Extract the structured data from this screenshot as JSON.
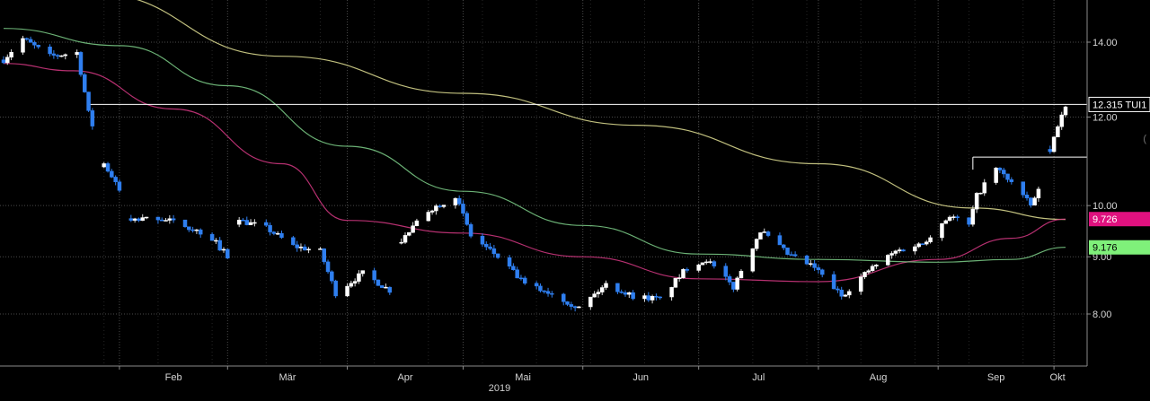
{
  "chart_data": {
    "type": "candlestick",
    "year_label": "2019",
    "x_ticks": [
      "Feb",
      "Mär",
      "Apr",
      "Mai",
      "Jun",
      "Jul",
      "Aug",
      "Sep",
      "Okt"
    ],
    "y_ticks": [
      "14.00",
      "12.00",
      "10.00",
      "9.00",
      "8.00"
    ],
    "y_axis": {
      "scale": "log",
      "range": [
        7.5,
        15.5
      ]
    },
    "grid": true,
    "colors": {
      "background": "#000000",
      "up_candle": "#ffffff",
      "down_candle": "#2f7ff0",
      "ma_long": "#e2e094",
      "ma_mid": "#7ed08a",
      "ma_short": "#d63884",
      "price_line": "#ffffff",
      "grid": "#4a4a4a"
    },
    "badges": [
      {
        "text": "12.315 TUI1",
        "value": 12.315,
        "color": "#000000",
        "text_color": "#ffffff",
        "border": "#ffffff"
      },
      {
        "text": "9.726",
        "value": 9.726,
        "color": "#e0117f",
        "text_color": "#ffffff"
      },
      {
        "text": "9.176",
        "value": 9.176,
        "color": "#7ff07a",
        "text_color": "#000000"
      }
    ],
    "horizontal_lines": [
      {
        "name": "last-price-line",
        "value": 12.315,
        "from": "2019-01-24",
        "to": "2019-10-04"
      },
      {
        "name": "resistance-line",
        "value": 11.05,
        "from": "2019-09-10",
        "to": "2019-10-04"
      }
    ],
    "series": [
      {
        "name": "candles",
        "anchors": [
          [
            "2019-01-02",
            13.5
          ],
          [
            "2019-01-07",
            14.1
          ],
          [
            "2019-01-14",
            13.6
          ],
          [
            "2019-01-21",
            13.7
          ],
          [
            "2019-01-24",
            12.1
          ],
          [
            "2019-01-28",
            10.9
          ],
          [
            "2019-02-01",
            10.3
          ],
          [
            "2019-02-04",
            9.7
          ],
          [
            "2019-02-11",
            9.75
          ],
          [
            "2019-02-18",
            9.6
          ],
          [
            "2019-02-25",
            9.35
          ],
          [
            "2019-03-01",
            9.0
          ],
          [
            "2019-03-04",
            9.7
          ],
          [
            "2019-03-11",
            9.55
          ],
          [
            "2019-03-18",
            9.2
          ],
          [
            "2019-03-25",
            9.1
          ],
          [
            "2019-03-29",
            8.35
          ],
          [
            "2019-04-05",
            8.7
          ],
          [
            "2019-04-12",
            8.4
          ],
          [
            "2019-04-15",
            9.3
          ],
          [
            "2019-04-22",
            9.9
          ],
          [
            "2019-04-29",
            10.2
          ],
          [
            "2019-05-03",
            9.4
          ],
          [
            "2019-05-10",
            9.0
          ],
          [
            "2019-05-17",
            8.5
          ],
          [
            "2019-05-24",
            8.35
          ],
          [
            "2019-05-31",
            8.1
          ],
          [
            "2019-06-07",
            8.5
          ],
          [
            "2019-06-14",
            8.3
          ],
          [
            "2019-06-21",
            8.25
          ],
          [
            "2019-06-28",
            8.8
          ],
          [
            "2019-07-03",
            8.95
          ],
          [
            "2019-07-10",
            8.45
          ],
          [
            "2019-07-17",
            9.5
          ],
          [
            "2019-07-24",
            9.05
          ],
          [
            "2019-07-31",
            8.8
          ],
          [
            "2019-08-07",
            8.3
          ],
          [
            "2019-08-14",
            8.75
          ],
          [
            "2019-08-21",
            9.1
          ],
          [
            "2019-08-28",
            9.25
          ],
          [
            "2019-09-04",
            9.8
          ],
          [
            "2019-09-09",
            9.6
          ],
          [
            "2019-09-11",
            10.2
          ],
          [
            "2019-09-16",
            10.8
          ],
          [
            "2019-09-20",
            10.5
          ],
          [
            "2019-09-25",
            10.0
          ],
          [
            "2019-09-27",
            10.3
          ],
          [
            "2019-10-01",
            11.5
          ],
          [
            "2019-10-04",
            12.315
          ]
        ]
      },
      {
        "name": "ma_long",
        "points": [
          [
            "2019-01-24",
            15.5
          ],
          [
            "2019-03-15",
            13.6
          ],
          [
            "2019-05-01",
            12.6
          ],
          [
            "2019-06-15",
            11.8
          ],
          [
            "2019-08-01",
            10.9
          ],
          [
            "2019-09-10",
            9.95
          ],
          [
            "2019-10-04",
            9.72
          ]
        ]
      },
      {
        "name": "ma_short",
        "points": [
          [
            "2019-01-02",
            13.4
          ],
          [
            "2019-01-20",
            13.2
          ],
          [
            "2019-02-15",
            12.2
          ],
          [
            "2019-03-15",
            10.9
          ],
          [
            "2019-04-01",
            9.7
          ],
          [
            "2019-05-01",
            9.45
          ],
          [
            "2019-06-01",
            9.0
          ],
          [
            "2019-07-01",
            8.6
          ],
          [
            "2019-08-01",
            8.55
          ],
          [
            "2019-09-01",
            8.95
          ],
          [
            "2019-09-20",
            9.35
          ],
          [
            "2019-10-04",
            9.726
          ]
        ]
      },
      {
        "name": "ma_mid",
        "points": [
          [
            "2019-01-02",
            14.4
          ],
          [
            "2019-02-01",
            13.9
          ],
          [
            "2019-03-01",
            12.8
          ],
          [
            "2019-04-01",
            11.3
          ],
          [
            "2019-05-01",
            10.3
          ],
          [
            "2019-06-01",
            9.6
          ],
          [
            "2019-07-01",
            9.05
          ],
          [
            "2019-08-01",
            8.95
          ],
          [
            "2019-09-01",
            8.9
          ],
          [
            "2019-09-20",
            8.95
          ],
          [
            "2019-10-04",
            9.176
          ]
        ]
      }
    ]
  }
}
